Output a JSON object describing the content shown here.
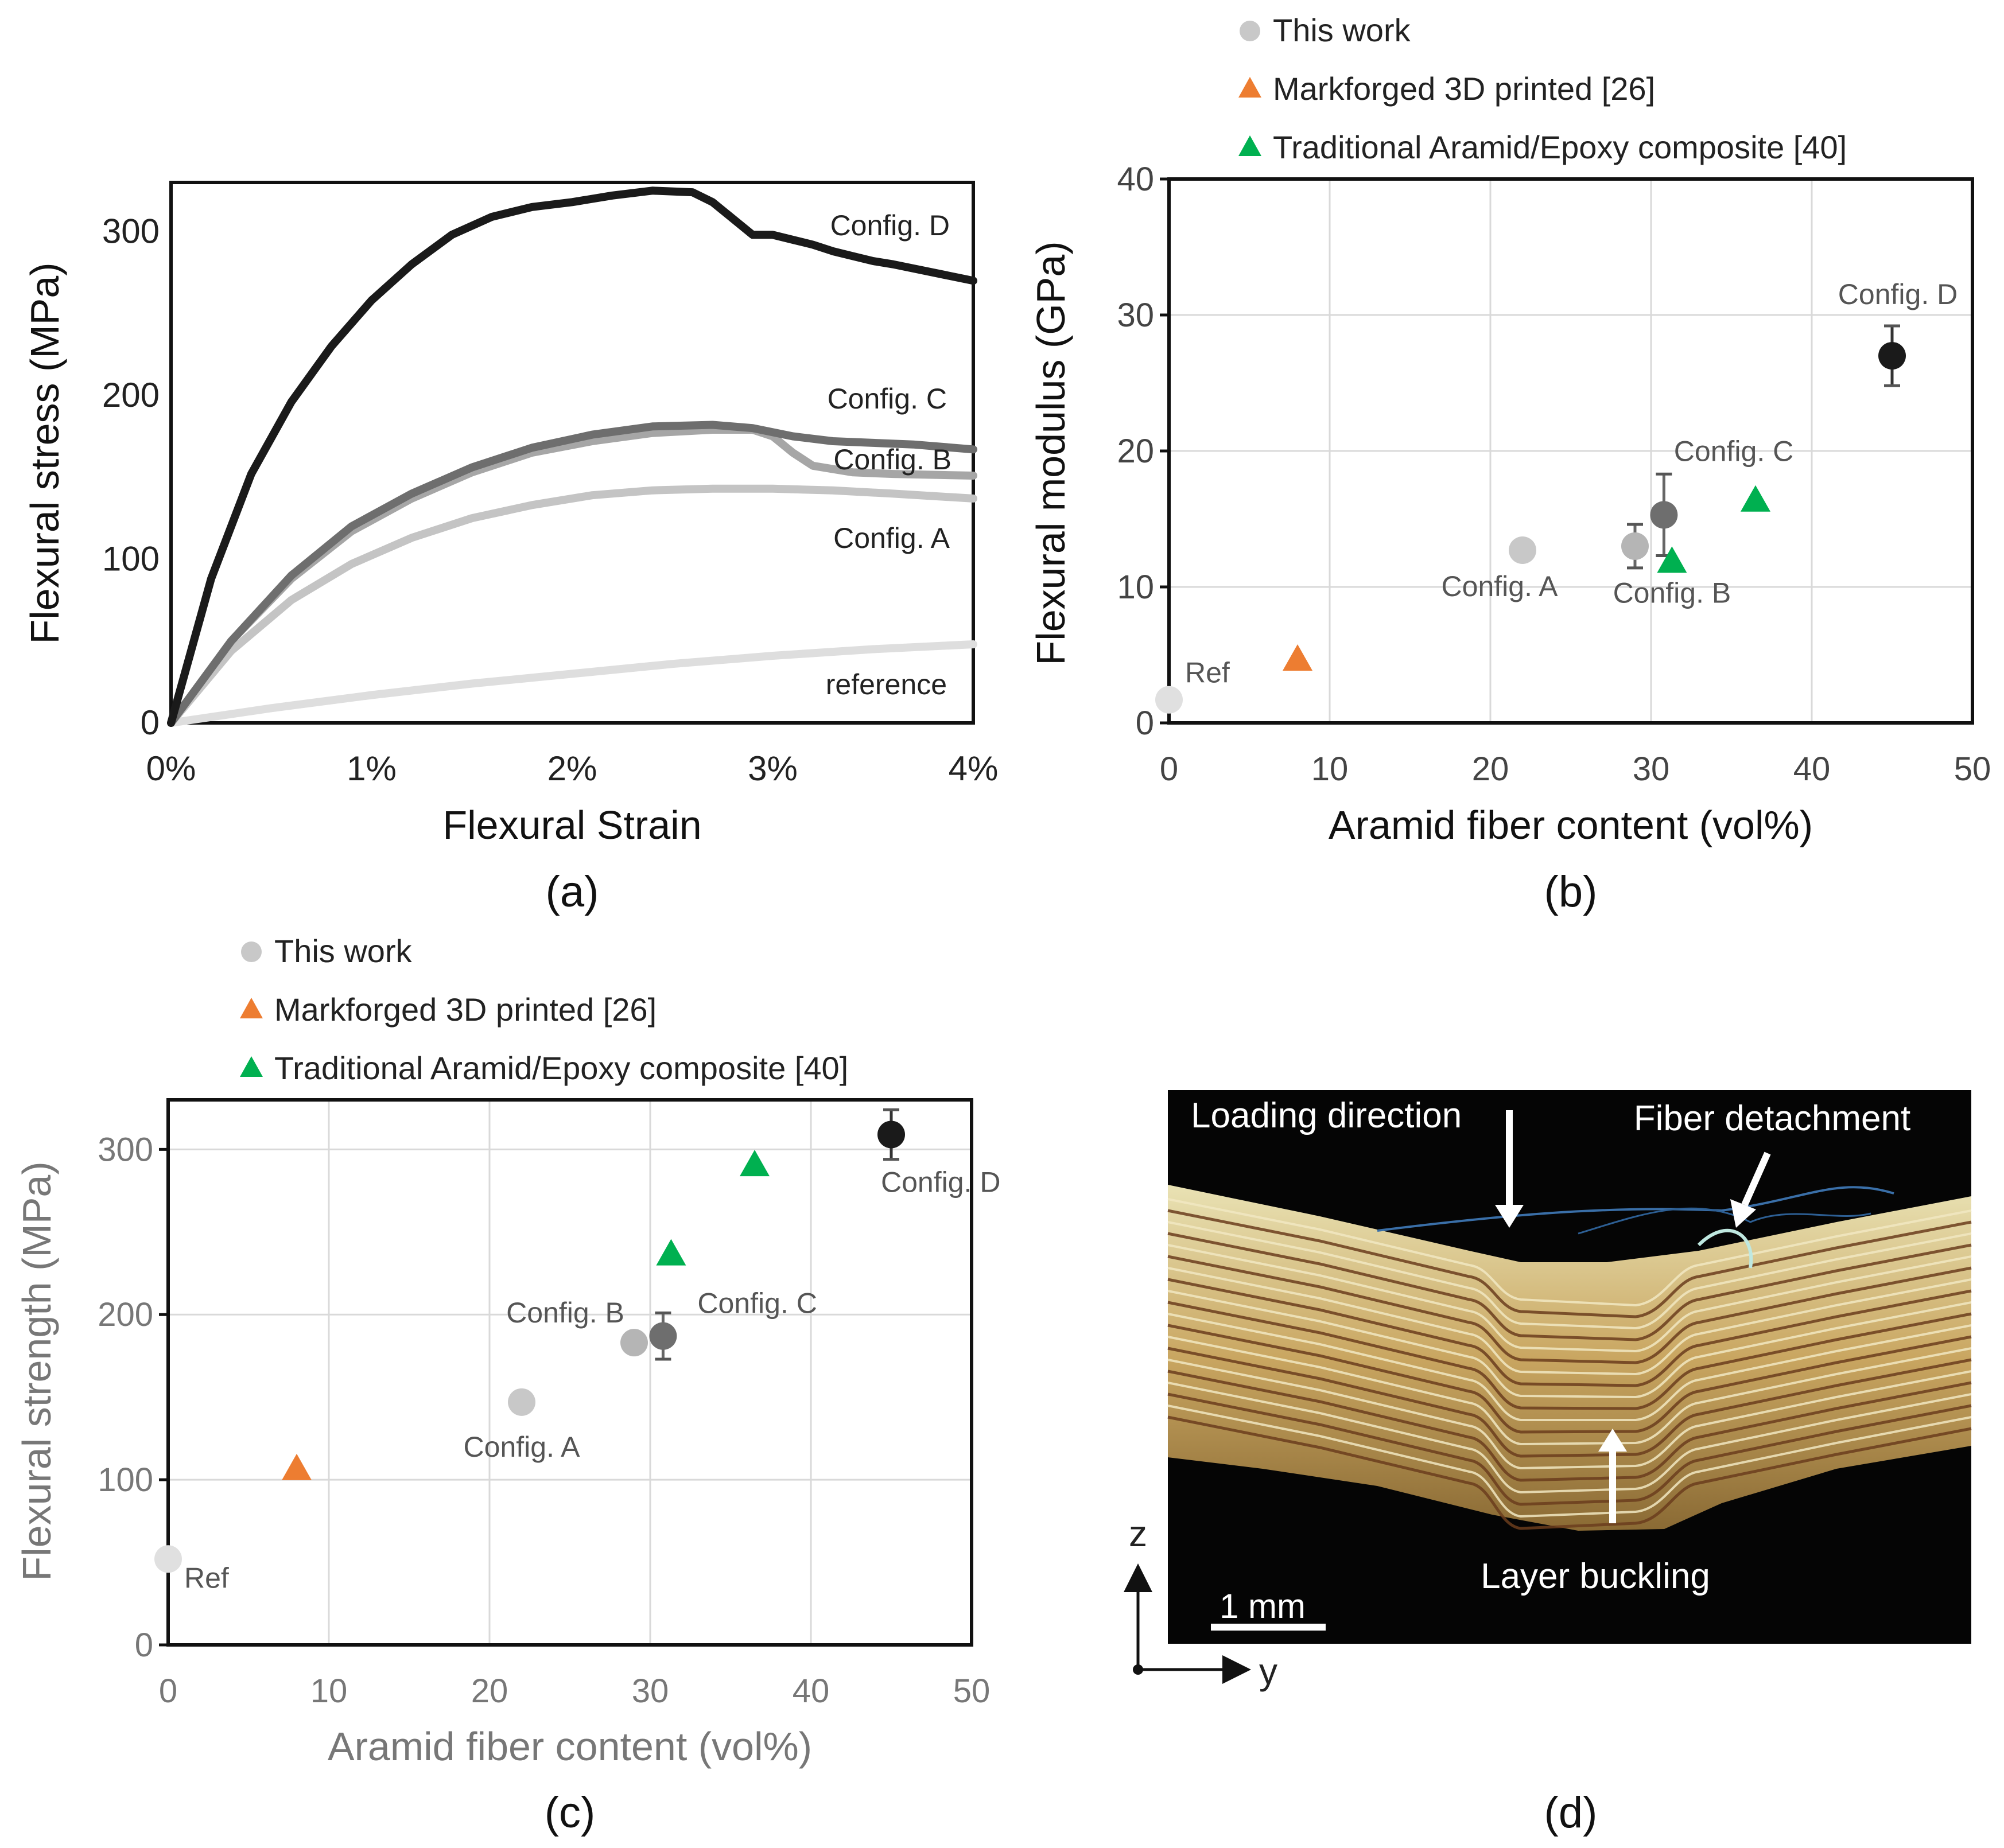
{
  "chart_data": [
    {
      "id": "a",
      "type": "line",
      "panel_label": "(a)",
      "xlabel": "Flexural Strain",
      "ylabel": "Flexural stress (MPa)",
      "xlim": [
        0,
        0.04
      ],
      "ylim": [
        0,
        330
      ],
      "x_ticks": [
        0,
        0.01,
        0.02,
        0.03,
        0.04
      ],
      "x_tick_labels": [
        "0%",
        "1%",
        "2%",
        "3%",
        "4%"
      ],
      "y_ticks": [
        0,
        100,
        200,
        300
      ],
      "y_tick_labels": [
        "0",
        "100",
        "200",
        "300"
      ],
      "grid": false,
      "series": [
        {
          "name": "Config. D",
          "label": "Config. D",
          "color": "#1a1a1a",
          "x": [
            0,
            0.002,
            0.004,
            0.006,
            0.008,
            0.01,
            0.012,
            0.014,
            0.016,
            0.018,
            0.02,
            0.022,
            0.024,
            0.026,
            0.027,
            0.028,
            0.029,
            0.03,
            0.031,
            0.032,
            0.033,
            0.034,
            0.035,
            0.036,
            0.038,
            0.04
          ],
          "y": [
            0,
            88,
            152,
            196,
            230,
            258,
            280,
            298,
            309,
            315,
            318,
            322,
            325,
            324,
            318,
            308,
            298,
            298,
            295,
            292,
            288,
            285,
            282,
            280,
            275,
            270
          ]
        },
        {
          "name": "Config. C",
          "label": "Config. C",
          "color": "#6e6e6e",
          "x": [
            0,
            0.003,
            0.006,
            0.009,
            0.012,
            0.015,
            0.018,
            0.021,
            0.024,
            0.027,
            0.029,
            0.031,
            0.033,
            0.035,
            0.037,
            0.04
          ],
          "y": [
            0,
            50,
            90,
            120,
            140,
            156,
            168,
            176,
            181,
            182,
            180,
            175,
            172,
            171,
            170,
            167
          ]
        },
        {
          "name": "Config. B",
          "label": "Config. B",
          "color": "#a6a6a6",
          "x": [
            0,
            0.003,
            0.006,
            0.009,
            0.012,
            0.015,
            0.018,
            0.021,
            0.024,
            0.027,
            0.029,
            0.03,
            0.031,
            0.032,
            0.034,
            0.036,
            0.04
          ],
          "y": [
            0,
            50,
            88,
            117,
            137,
            153,
            165,
            172,
            177,
            179,
            179,
            175,
            165,
            157,
            153,
            152,
            151
          ]
        },
        {
          "name": "Config. A",
          "label": "Config. A",
          "color": "#c4c4c4",
          "x": [
            0,
            0.003,
            0.006,
            0.009,
            0.012,
            0.015,
            0.018,
            0.021,
            0.024,
            0.027,
            0.03,
            0.033,
            0.036,
            0.04
          ],
          "y": [
            0,
            44,
            75,
            97,
            113,
            125,
            133,
            139,
            142,
            143,
            143,
            142,
            140,
            137
          ]
        },
        {
          "name": "reference",
          "label": "reference",
          "color": "#dedede",
          "x": [
            0,
            0.005,
            0.01,
            0.015,
            0.02,
            0.025,
            0.03,
            0.035,
            0.04
          ],
          "y": [
            0,
            9,
            17,
            24,
            30,
            36,
            41,
            45,
            48
          ]
        }
      ]
    },
    {
      "id": "b",
      "type": "scatter",
      "panel_label": "(b)",
      "xlabel": "Aramid fiber content (vol%)",
      "ylabel": "Flexural modulus (GPa)",
      "xlim": [
        0,
        50
      ],
      "ylim": [
        0,
        40
      ],
      "x_ticks": [
        0,
        10,
        20,
        30,
        40,
        50
      ],
      "y_ticks": [
        0,
        10,
        20,
        30,
        40
      ],
      "grid": true,
      "legend": [
        {
          "label": "This work",
          "marker": "circle",
          "color": "#c8c8c8"
        },
        {
          "label": "Markforged 3D printed [26]",
          "marker": "triangle",
          "color": "#ed7d31"
        },
        {
          "label": "Traditional Aramid/Epoxy composite [40]",
          "marker": "triangle",
          "color": "#00b050"
        }
      ],
      "points": [
        {
          "x": 0,
          "y": 1.7,
          "marker": "circle",
          "color": "#e0e0e0",
          "label": "Ref",
          "err": 0
        },
        {
          "x": 22,
          "y": 12.7,
          "marker": "circle",
          "color": "#c8c8c8",
          "label": "Config. A",
          "err": 0.5
        },
        {
          "x": 29,
          "y": 13,
          "marker": "circle",
          "color": "#b5b5b5",
          "label": "",
          "err": 1.6
        },
        {
          "x": 30.8,
          "y": 15.3,
          "marker": "circle",
          "color": "#6e6e6e",
          "label": "",
          "err": 3
        },
        {
          "x": 45,
          "y": 27,
          "marker": "circle",
          "color": "#1a1a1a",
          "label": "Config. D",
          "err": 2.2
        },
        {
          "x": 8,
          "y": 4.6,
          "marker": "triangle",
          "color": "#ed7d31",
          "label": "",
          "err": 0
        },
        {
          "x": 31.3,
          "y": 11.8,
          "marker": "triangle",
          "color": "#00b050",
          "label": "Config. B",
          "err": 0
        },
        {
          "x": 36.5,
          "y": 16.3,
          "marker": "triangle",
          "color": "#00b050",
          "label": "Config. C",
          "err": 0
        }
      ]
    },
    {
      "id": "c",
      "type": "scatter",
      "panel_label": "(c)",
      "xlabel": "Aramid fiber content (vol%)",
      "ylabel": "Flexural strength (MPa)",
      "xlim": [
        0,
        50
      ],
      "ylim": [
        0,
        330
      ],
      "x_ticks": [
        0,
        10,
        20,
        30,
        40,
        50
      ],
      "y_ticks": [
        0,
        100,
        200,
        300
      ],
      "grid": true,
      "legend": [
        {
          "label": "This work",
          "marker": "circle",
          "color": "#c8c8c8"
        },
        {
          "label": "Markforged 3D printed [26]",
          "marker": "triangle",
          "color": "#ed7d31"
        },
        {
          "label": "Traditional Aramid/Epoxy composite [40]",
          "marker": "triangle",
          "color": "#00b050"
        }
      ],
      "points": [
        {
          "x": 0,
          "y": 52,
          "marker": "circle",
          "color": "#e0e0e0",
          "label": "Ref",
          "err": 0
        },
        {
          "x": 22,
          "y": 147,
          "marker": "circle",
          "color": "#c8c8c8",
          "label": "Config. A",
          "err": 5
        },
        {
          "x": 29,
          "y": 183,
          "marker": "circle",
          "color": "#b5b5b5",
          "label": "Config. B",
          "err": 0
        },
        {
          "x": 30.8,
          "y": 187,
          "marker": "circle",
          "color": "#6e6e6e",
          "label": "Config. C",
          "err": 14
        },
        {
          "x": 45,
          "y": 309,
          "marker": "circle",
          "color": "#1a1a1a",
          "label": "Config. D",
          "err": 15
        },
        {
          "x": 8,
          "y": 106,
          "marker": "triangle",
          "color": "#ed7d31",
          "label": "",
          "err": 0
        },
        {
          "x": 31.3,
          "y": 236,
          "marker": "triangle",
          "color": "#00b050",
          "label": "",
          "err": 0
        },
        {
          "x": 36.5,
          "y": 290,
          "marker": "triangle",
          "color": "#00b050",
          "label": "",
          "err": 0
        }
      ]
    }
  ],
  "panel_d": {
    "panel_label": "(d)",
    "loading_direction": "Loading direction",
    "fiber_detachment": "Fiber detachment",
    "layer_buckling": "Layer buckling",
    "scale_bar": "1 mm",
    "axis_z": "z",
    "axis_y": "y"
  }
}
